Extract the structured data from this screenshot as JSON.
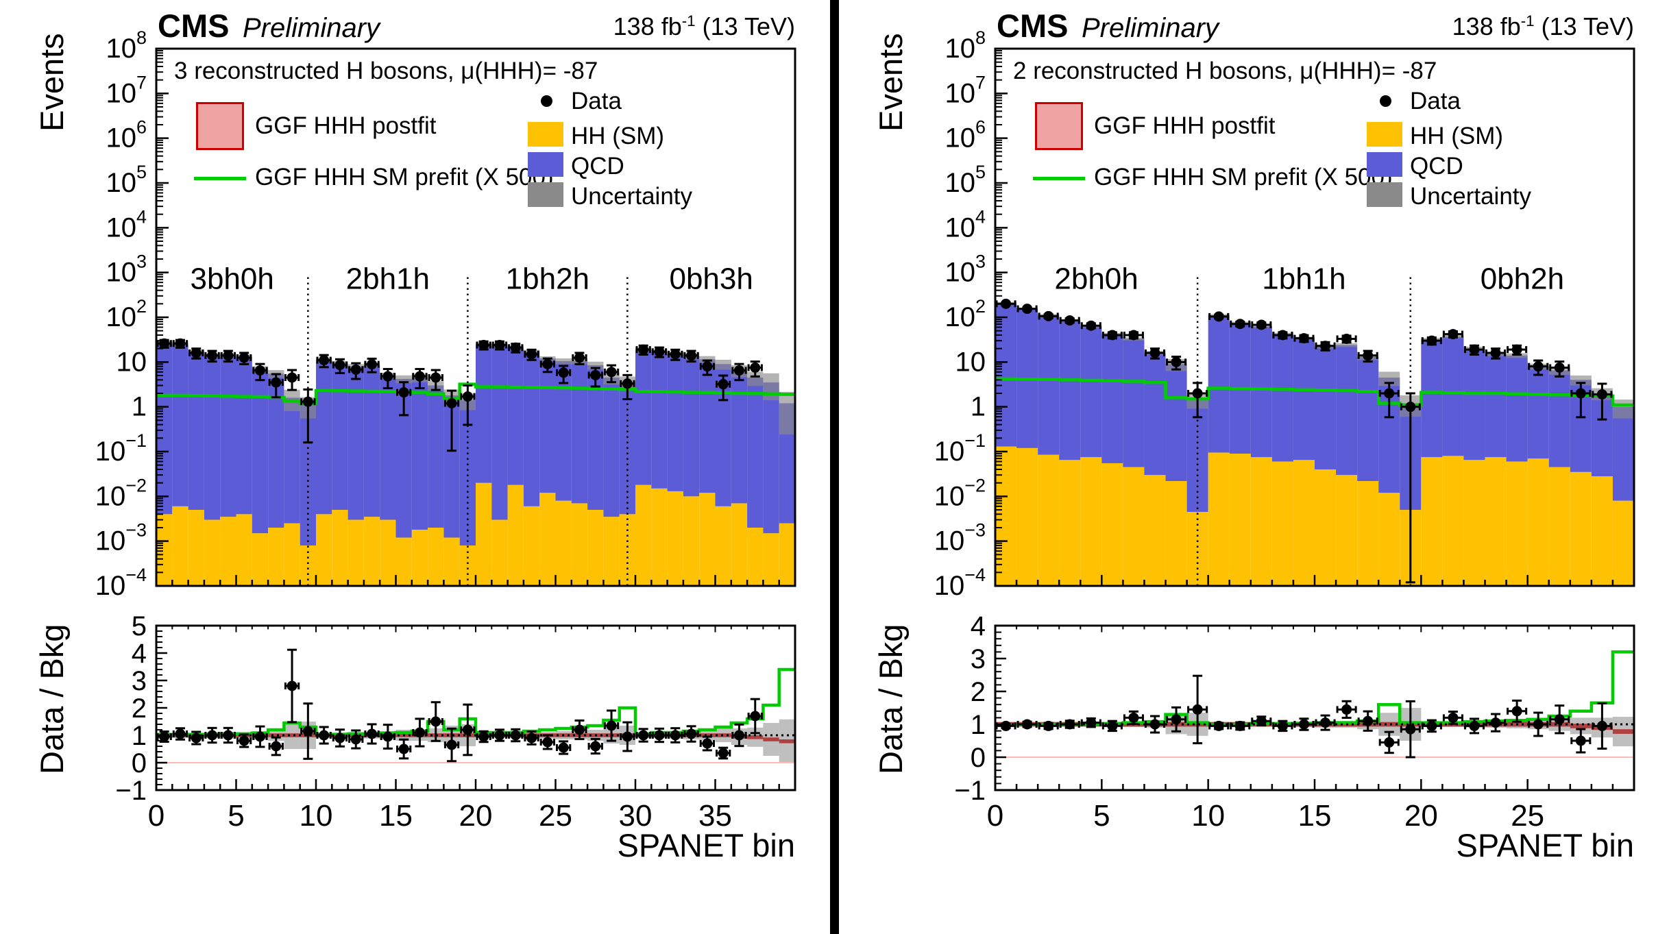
{
  "header": {
    "cms": "CMS",
    "preliminary": "Preliminary",
    "lumi_prefix": "138 fb",
    "lumi_sup": "-1",
    "lumi_suffix": " (13 TeV)"
  },
  "labels": {
    "events_axis": "Events",
    "ratio_axis": "Data / Bkg",
    "x_axis": "SPANET bin"
  },
  "legend": {
    "postfit": "GGF HHH postfit",
    "prefit": "GGF HHH SM prefit (X 500)",
    "data": "Data",
    "hh_sm": "HH (SM)",
    "qcd": "QCD",
    "uncertainty": "Uncertainty"
  },
  "colors": {
    "qcd": "#5c5cd6",
    "hh_sm": "#ffc202",
    "uncertainty": "#8a8a8a",
    "prefit_green": "#00cc00",
    "postfit_fill": "#f0a3a3",
    "postfit_border": "#cc0000",
    "ratio_band_red": "#b03434",
    "data_marker": "#000000"
  },
  "chart_data": [
    {
      "type": "bar",
      "subtype": "stacked-log-histogram-with-ratio",
      "title": "3 reconstructed H bosons, μ(HHH)= -87",
      "regions": [
        "3bh0h",
        "2bh1h",
        "1bh2h",
        "0bh3h"
      ],
      "region_boundaries": [
        9.5,
        19.5,
        29.5
      ],
      "region_centers": [
        4.75,
        14.5,
        24.5,
        34.75
      ],
      "x": {
        "max": 40,
        "tick_step": 5,
        "label": "SPANET bin"
      },
      "y": {
        "scale": "log",
        "min_exp": -4,
        "max_exp": 8,
        "label": "Events"
      },
      "ratio": {
        "range": [
          -1,
          5
        ],
        "label": "Data / Bkg",
        "postfit_halfwidth": 0.07
      },
      "series": {
        "totals": [
          27,
          25,
          17,
          14,
          14,
          13,
          7,
          5.5,
          1.6,
          1.1,
          11,
          9.5,
          8,
          8.5,
          5,
          4.2,
          4.4,
          3,
          1.8,
          1.4,
          25,
          24,
          21,
          17,
          12,
          10.5,
          10.5,
          8.5,
          4.5,
          3.5,
          19,
          17,
          15,
          13.5,
          11.5,
          9,
          6.5,
          4.5,
          3.5,
          1.2
        ],
        "hh_sm": [
          0.004,
          0.006,
          0.005,
          0.003,
          0.0035,
          0.004,
          0.0015,
          0.002,
          0.0025,
          0.0008,
          0.004,
          0.005,
          0.003,
          0.0035,
          0.003,
          0.0012,
          0.0018,
          0.002,
          0.0012,
          0.0008,
          0.02,
          0.003,
          0.018,
          0.006,
          0.012,
          0.008,
          0.007,
          0.005,
          0.0035,
          0.004,
          0.018,
          0.015,
          0.013,
          0.01,
          0.012,
          0.006,
          0.007,
          0.002,
          0.0015,
          0.0025
        ],
        "prefit_x500": [
          1.8,
          1.8,
          1.78,
          1.75,
          1.72,
          1.7,
          1.68,
          1.62,
          1.35,
          1.2,
          2.3,
          2.28,
          2.25,
          2.22,
          2.2,
          2.15,
          2.1,
          1.95,
          1.55,
          3.2,
          2.8,
          2.78,
          2.75,
          2.72,
          2.7,
          2.65,
          2.6,
          2.55,
          2.5,
          2.45,
          2.2,
          2.18,
          2.15,
          2.1,
          2.08,
          2.05,
          2.0,
          1.98,
          1.95,
          1.9
        ],
        "data": [
          26,
          26,
          16,
          14,
          14,
          12.5,
          6.5,
          3.5,
          4.5,
          1.3,
          11,
          8.6,
          6.8,
          8.9,
          4.8,
          2.1,
          4.8,
          4.5,
          1.2,
          1.7,
          24,
          24,
          21,
          15,
          9,
          5.8,
          12.5,
          5.1,
          6,
          3.3,
          19,
          17,
          15,
          14,
          8,
          3.2,
          6.5,
          7.5,
          null,
          null
        ],
        "unc_rel": [
          0.1,
          0.1,
          0.1,
          0.1,
          0.12,
          0.12,
          0.15,
          0.2,
          0.5,
          0.5,
          0.1,
          0.1,
          0.12,
          0.12,
          0.15,
          0.2,
          0.2,
          0.25,
          0.35,
          0.4,
          0.08,
          0.08,
          0.1,
          0.1,
          0.12,
          0.15,
          0.15,
          0.2,
          0.3,
          0.35,
          0.1,
          0.1,
          0.12,
          0.15,
          0.18,
          0.25,
          0.3,
          0.35,
          0.6,
          0.8
        ],
        "ratio_data": [
          0.95,
          1.05,
          0.9,
          1.0,
          1.0,
          0.8,
          0.95,
          0.6,
          2.8,
          1.15,
          1.0,
          0.9,
          0.85,
          1.05,
          0.95,
          0.5,
          1.1,
          1.5,
          0.65,
          1.2,
          0.95,
          1.0,
          1.0,
          0.9,
          0.75,
          0.55,
          1.2,
          0.6,
          1.35,
          0.95,
          1.0,
          1.0,
          1.0,
          1.05,
          0.7,
          0.35,
          1.0,
          1.7,
          null,
          null
        ],
        "ratio_green": [
          1.02,
          1.02,
          1.02,
          1.03,
          1.05,
          1.05,
          1.08,
          1.2,
          1.45,
          1.3,
          1.02,
          1.03,
          1.05,
          1.05,
          1.08,
          1.1,
          1.15,
          1.5,
          1.2,
          1.6,
          1.1,
          1.1,
          1.1,
          1.15,
          1.2,
          1.25,
          1.3,
          1.35,
          1.55,
          2.0,
          1.05,
          1.1,
          1.1,
          1.15,
          1.2,
          1.3,
          1.45,
          1.6,
          2.1,
          3.4
        ],
        "postfit_center": [
          1,
          1,
          1,
          1,
          1,
          1,
          1,
          1,
          1,
          1,
          1,
          1,
          1,
          1,
          1,
          1,
          1,
          1,
          1,
          1,
          1,
          1,
          1,
          1,
          1,
          1,
          1,
          1,
          1,
          1,
          1,
          1,
          1,
          1,
          1,
          1,
          0.95,
          0.93,
          0.85,
          0.78
        ]
      }
    },
    {
      "type": "bar",
      "subtype": "stacked-log-histogram-with-ratio",
      "title": "2 reconstructed H bosons, μ(HHH)= -87",
      "regions": [
        "2bh0h",
        "1bh1h",
        "0bh2h"
      ],
      "region_boundaries": [
        9.5,
        19.5
      ],
      "region_centers": [
        4.75,
        14.5,
        24.75
      ],
      "x": {
        "max": 30,
        "tick_step": 5,
        "label": "SPANET bin"
      },
      "y": {
        "scale": "log",
        "min_exp": -4,
        "max_exp": 8,
        "label": "Events"
      },
      "ratio": {
        "range": [
          -1,
          4
        ],
        "label": "Data / Bkg",
        "postfit_halfwidth": 0.07
      },
      "series": {
        "totals": [
          210,
          155,
          112,
          85,
          62,
          42,
          33,
          16,
          9,
          1.4,
          110,
          75,
          62,
          42,
          34,
          22,
          24,
          13,
          4.5,
          1.2,
          32,
          37,
          20,
          15,
          14,
          8,
          6.5,
          4,
          2,
          1.0
        ],
        "hh_sm": [
          0.13,
          0.12,
          0.085,
          0.065,
          0.075,
          0.055,
          0.045,
          0.03,
          0.022,
          0.0045,
          0.095,
          0.09,
          0.075,
          0.06,
          0.065,
          0.04,
          0.03,
          0.022,
          0.012,
          0.005,
          0.075,
          0.08,
          0.065,
          0.075,
          0.06,
          0.07,
          0.045,
          0.035,
          0.028,
          0.008
        ],
        "prefit_x500": [
          4.2,
          4.15,
          4.1,
          4.0,
          3.9,
          3.8,
          3.7,
          3.5,
          1.6,
          1.5,
          2.6,
          2.55,
          2.5,
          2.45,
          2.4,
          2.35,
          2.3,
          2.2,
          1.2,
          1.1,
          2.1,
          2.05,
          2.0,
          2.0,
          1.95,
          1.9,
          1.85,
          1.8,
          1.75,
          1.1
        ],
        "data": [
          200,
          155,
          106,
          85,
          65,
          40,
          40,
          16,
          10,
          2,
          104,
          71,
          68,
          40,
          34,
          23,
          33,
          14,
          2,
          1,
          30,
          42,
          19,
          16,
          19,
          8,
          7.5,
          2,
          1.9,
          null
        ],
        "unc_rel": [
          0.05,
          0.05,
          0.05,
          0.06,
          0.06,
          0.07,
          0.08,
          0.1,
          0.3,
          0.35,
          0.06,
          0.06,
          0.07,
          0.07,
          0.08,
          0.1,
          0.1,
          0.15,
          0.35,
          0.5,
          0.08,
          0.08,
          0.1,
          0.1,
          0.12,
          0.15,
          0.2,
          0.25,
          0.3,
          0.45
        ],
        "ratio_data": [
          0.95,
          1.0,
          0.95,
          1.0,
          1.05,
          0.95,
          1.2,
          1.0,
          1.15,
          1.45,
          0.95,
          0.95,
          1.1,
          0.95,
          1.0,
          1.05,
          1.45,
          1.1,
          0.45,
          0.85,
          0.95,
          1.2,
          0.95,
          1.05,
          1.4,
          1.0,
          1.15,
          0.5,
          0.95,
          null
        ],
        "ratio_green": [
          0.98,
          0.99,
          1.0,
          1.0,
          1.0,
          1.02,
          1.05,
          1.08,
          1.3,
          1.05,
          1.0,
          1.0,
          1.02,
          1.02,
          1.03,
          1.05,
          1.05,
          1.1,
          1.6,
          1.05,
          1.05,
          1.05,
          1.08,
          1.1,
          1.12,
          1.15,
          1.25,
          1.4,
          1.65,
          3.2
        ],
        "postfit_center": [
          1,
          1,
          1,
          1,
          1,
          1,
          1,
          1,
          1,
          1,
          1,
          1,
          1,
          1,
          1,
          1,
          1,
          1,
          1,
          1,
          1,
          1,
          1,
          1,
          1,
          1,
          1,
          0.95,
          0.9,
          0.78
        ]
      }
    }
  ]
}
